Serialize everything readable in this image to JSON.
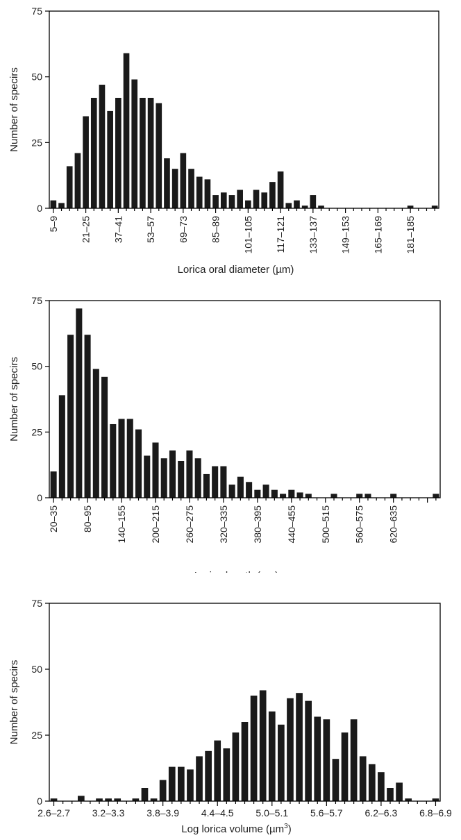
{
  "chart_data": [
    {
      "type": "bar",
      "xlabel": "Lorica oral diameter (µm)",
      "ylabel": "Number of specirs",
      "ylim": [
        0,
        75
      ],
      "yticks": [
        "0",
        "25",
        "50",
        "75"
      ],
      "bin_start": 5,
      "bin_width": 4,
      "tick_labels": [
        "5–9",
        "21–25",
        "37–41",
        "53–57",
        "69–73",
        "85–89",
        "101–105",
        "117–121",
        "133–137",
        "149–153",
        "165–169",
        "181–185"
      ],
      "tick_every": 4,
      "tick_label_rotation": "vertical",
      "values": [
        3,
        2,
        16,
        21,
        35,
        42,
        47,
        37,
        42,
        59,
        49,
        42,
        42,
        40,
        19,
        15,
        21,
        15,
        12,
        11,
        5,
        6,
        5,
        7,
        3,
        7,
        6,
        10,
        14,
        2,
        3,
        1,
        5,
        1,
        0,
        0,
        0,
        0,
        0,
        0,
        0,
        0,
        0,
        0,
        1,
        0,
        0,
        1
      ]
    },
    {
      "type": "bar",
      "xlabel": "Lorica length (µm)",
      "ylabel": "Number of specirs",
      "ylim": [
        0,
        75
      ],
      "yticks": [
        "0",
        "25",
        "50",
        "75"
      ],
      "bin_start": 20,
      "bin_width": 15,
      "tick_labels": [
        "20–35",
        "80–95",
        "140–155",
        "200–215",
        "260–275",
        "320–335",
        "380–395",
        "440–455",
        "500–515",
        "560–575",
        "620–635"
      ],
      "tick_every": 4,
      "tick_label_rotation": "vertical",
      "values": [
        10,
        39,
        62,
        72,
        62,
        49,
        46,
        28,
        30,
        30,
        26,
        16,
        21,
        15,
        18,
        14,
        18,
        15,
        9,
        12,
        12,
        5,
        8,
        6,
        3,
        5,
        3,
        1.5,
        3,
        2,
        1.5,
        0,
        0,
        1.5,
        0,
        0,
        1.5,
        1.5,
        0,
        0,
        1.5,
        0,
        0,
        0,
        0,
        1.5
      ]
    },
    {
      "type": "bar",
      "xlabel": "Log lorica volume (µm",
      "xlabel_superscript": "3",
      "xlabel_suffix": ")",
      "ylabel": "Number of specirs",
      "ylim": [
        0,
        75
      ],
      "yticks": [
        "0",
        "25",
        "50",
        "75"
      ],
      "bin_start": 2.6,
      "bin_width": 0.1,
      "tick_labels": [
        "2.6–2.7",
        "3.2–3.3",
        "3.8–3.9",
        "4.4–4.5",
        "5.0–5.1",
        "5.6–5.7",
        "6.2–6.3",
        "6.8–6.9"
      ],
      "tick_every": 6,
      "tick_label_rotation": "horizontal",
      "values": [
        1,
        0,
        0,
        2,
        0,
        1,
        1,
        1,
        0,
        1,
        5,
        1,
        8,
        13,
        13,
        12,
        17,
        19,
        23,
        20,
        26,
        30,
        40,
        42,
        34,
        29,
        39,
        41,
        38,
        32,
        31,
        16,
        26,
        31,
        17,
        14,
        11,
        5,
        7,
        1,
        0,
        0,
        1
      ]
    }
  ]
}
